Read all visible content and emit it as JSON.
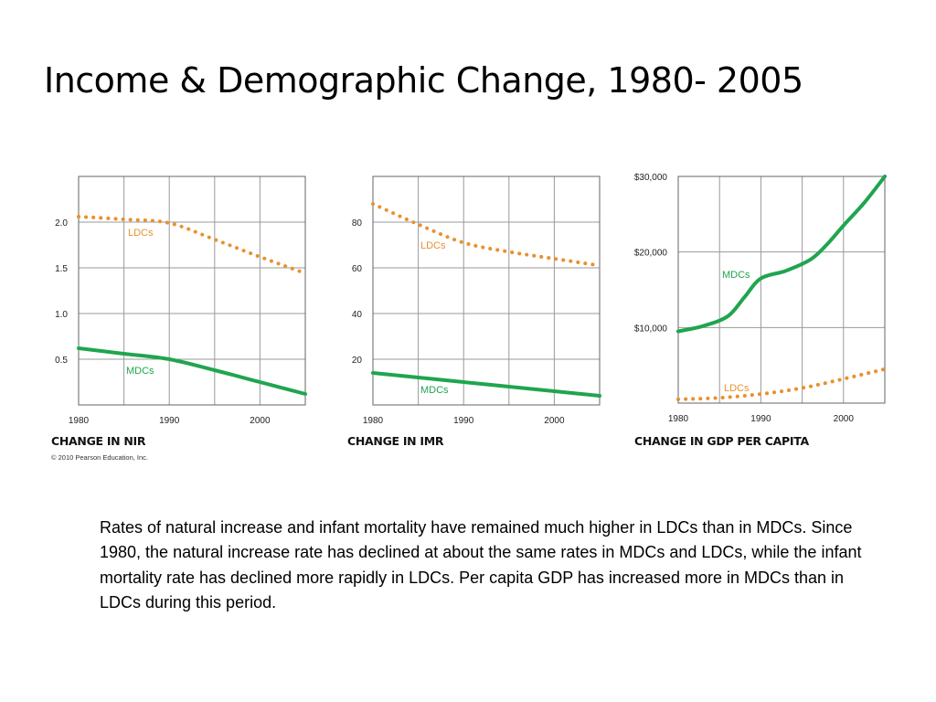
{
  "slide": {
    "title": "Income & Demographic Change, 1980- 2005",
    "copyright": "© 2010 Pearson Education, Inc.",
    "description": "Rates of natural increase and infant mortality have remained much higher in LDCs than in MDCs.  Since 1980, the natural increase rate has declined at about the same rates in MDCs and LDCs, while the infant mortality rate has declined more rapidly in LDCs. Per capita GDP has increased more in MDCs than in LDCs during this period."
  },
  "colors": {
    "ldc": "#e8912e",
    "mdc": "#1fa54f",
    "grid": "#9a9a9a",
    "frame": "#666666"
  },
  "chart_data": [
    {
      "type": "line",
      "title": "CHANGE IN NIR",
      "xlim": [
        1980,
        2005
      ],
      "ylim": [
        0,
        2.5
      ],
      "xticks": [
        {
          "v": 1980,
          "label": "1980"
        },
        {
          "v": 1990,
          "label": "1990"
        },
        {
          "v": 2000,
          "label": "2000"
        }
      ],
      "yticks": [
        {
          "v": 0.5,
          "label": "0.5"
        },
        {
          "v": 1.0,
          "label": "1.0"
        },
        {
          "v": 1.5,
          "label": "1.5"
        },
        {
          "v": 2.0,
          "label": "2.0"
        }
      ],
      "grid": true,
      "series": [
        {
          "name": "LDCs",
          "style": "dotted",
          "color_key": "ldc",
          "x": [
            1980,
            1985,
            1990,
            1995,
            2000,
            2005
          ],
          "y": [
            2.06,
            2.03,
            1.99,
            1.81,
            1.62,
            1.44
          ]
        },
        {
          "name": "MDCs",
          "style": "solid",
          "color_key": "mdc",
          "x": [
            1980,
            1985,
            1990,
            1995,
            2000,
            2005
          ],
          "y": [
            0.62,
            0.56,
            0.5,
            0.38,
            0.25,
            0.12
          ]
        }
      ]
    },
    {
      "type": "line",
      "title": "CHANGE IN IMR",
      "xlim": [
        1980,
        2005
      ],
      "ylim": [
        0,
        100
      ],
      "xticks": [
        {
          "v": 1980,
          "label": "1980"
        },
        {
          "v": 1990,
          "label": "1990"
        },
        {
          "v": 2000,
          "label": "2000"
        }
      ],
      "yticks": [
        {
          "v": 20,
          "label": "20"
        },
        {
          "v": 40,
          "label": "40"
        },
        {
          "v": 60,
          "label": "60"
        },
        {
          "v": 80,
          "label": "80"
        }
      ],
      "grid": true,
      "series": [
        {
          "name": "LDCs",
          "style": "dotted",
          "color_key": "ldc",
          "x": [
            1980,
            1985,
            1990,
            1995,
            2000,
            2005
          ],
          "y": [
            88,
            79,
            71,
            67,
            64,
            61
          ]
        },
        {
          "name": "MDCs",
          "style": "solid",
          "color_key": "mdc",
          "x": [
            1980,
            1985,
            1990,
            1995,
            2000,
            2005
          ],
          "y": [
            14,
            12,
            10,
            8,
            6,
            4
          ]
        }
      ]
    },
    {
      "type": "line",
      "title": "CHANGE IN GDP PER CAPITA",
      "xlim": [
        1980,
        2005
      ],
      "ylim": [
        0,
        30000
      ],
      "xticks": [
        {
          "v": 1980,
          "label": "1980"
        },
        {
          "v": 1990,
          "label": "1990"
        },
        {
          "v": 2000,
          "label": "2000"
        }
      ],
      "yticks": [
        {
          "v": 10000,
          "label": "$10,000"
        },
        {
          "v": 20000,
          "label": "$20,000"
        },
        {
          "v": 30000,
          "label": "$30,000"
        }
      ],
      "grid": true,
      "series": [
        {
          "name": "MDCs",
          "style": "solid",
          "color_key": "mdc",
          "x": [
            1980,
            1983,
            1986,
            1988,
            1990,
            1993,
            1996,
            1998,
            2000,
            2002.5,
            2005
          ],
          "y": [
            9500,
            10200,
            11500,
            14000,
            16500,
            17500,
            19000,
            21000,
            23500,
            26500,
            30000
          ]
        },
        {
          "name": "LDCs",
          "style": "dotted",
          "color_key": "ldc",
          "x": [
            1980,
            1985,
            1990,
            1995,
            2000,
            2005
          ],
          "y": [
            500,
            700,
            1200,
            2000,
            3200,
            4500
          ]
        }
      ]
    }
  ]
}
